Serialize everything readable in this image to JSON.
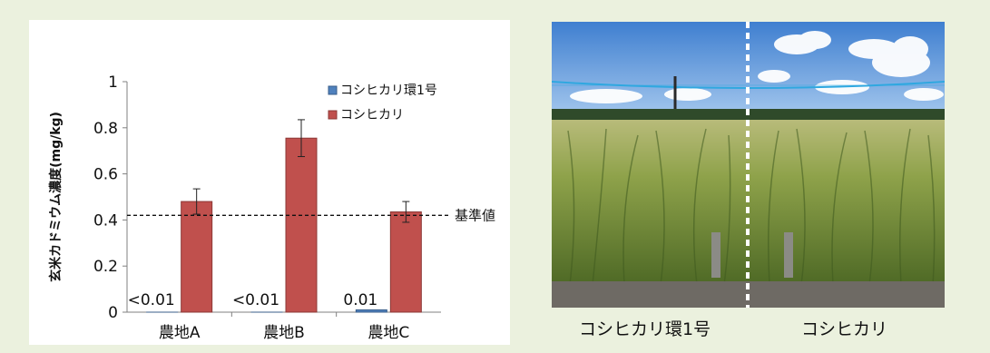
{
  "chart_data": {
    "type": "bar",
    "categories": [
      "農地A",
      "農地B",
      "農地C"
    ],
    "series": [
      {
        "name": "コシヒカリ環1号",
        "values": [
          0,
          0,
          0.01
        ],
        "labels": [
          "<0.01",
          "<0.01",
          "0.01"
        ],
        "color": "#4f81bd"
      },
      {
        "name": "コシヒカリ",
        "values": [
          0.48,
          0.755,
          0.435
        ],
        "errors": [
          0.055,
          0.08,
          0.045
        ],
        "color": "#c0504d"
      }
    ],
    "ylabel": "玄米カドミウム濃度(mg/kg)",
    "ylim": [
      0,
      1
    ],
    "yticks": [
      "0",
      "0.2",
      "0.4",
      "0.6",
      "0.8",
      "1"
    ],
    "reference_line": {
      "value": 0.42,
      "label": "基準値"
    },
    "legend_position": "top-right",
    "grid": false
  },
  "photo": {
    "left_caption": "コシヒカリ環1号",
    "right_caption": "コシヒカリ",
    "colors": {
      "sky": "#5b8fd6",
      "plant": "#7f9a3a",
      "ground": "#6e6a64"
    }
  }
}
